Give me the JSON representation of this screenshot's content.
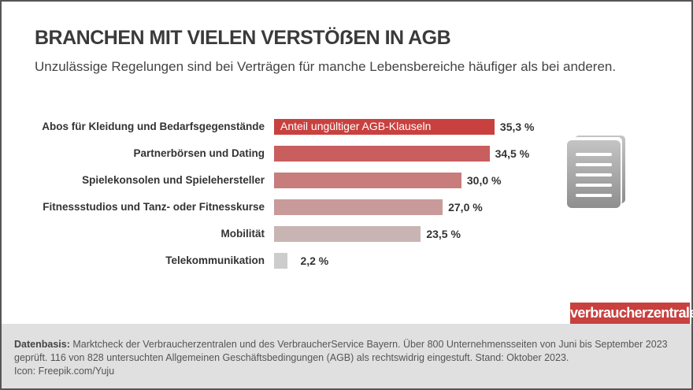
{
  "title": "BRANCHEN MIT VIELEN VERSTÖẞEN IN AGB",
  "subtitle": "Unzulässige Regelungen sind bei Verträgen für manche Lebensbereiche häufiger als bei anderen.",
  "chart_data": {
    "type": "bar",
    "orientation": "horizontal",
    "categories": [
      "Abos für Kleidung und Bedarfsgegenstände",
      "Partnerbörsen und Dating",
      "Spielekonsolen und Spielehersteller",
      "Fitnessstudios und Tanz- oder Fitnesskurse",
      "Mobilität",
      "Telekommunikation"
    ],
    "series": [
      {
        "name": "Anteil ungültiger AGB-Klauseln",
        "values": [
          35.3,
          34.5,
          30.0,
          27.0,
          23.5,
          2.2
        ]
      }
    ],
    "value_labels": [
      "35,3 %",
      "34,5 %",
      "30,0 %",
      "27,0 %",
      "23,5 %",
      "2,2 %"
    ],
    "unit": "%",
    "colors": [
      "#c8413f",
      "#c85e5e",
      "#c87c7c",
      "#c99a9a",
      "#c9b4b4",
      "#cccccc"
    ],
    "legend_placement": "inside first bar",
    "grid": false
  },
  "icon": "document-stack-icon",
  "logo": "verbraucherzentrale",
  "footer": {
    "label": "Datenbasis:",
    "text": " Marktcheck der Verbraucherzentralen und des VerbraucherService Bayern. Über 800 Unternehmensseiten von Juni bis September 2023 geprüft. 116 von 828 untersuchten Allgemeinen Geschäftsbedingungen (AGB) als rechtswidrig eingestuft. Stand: Oktober 2023.",
    "credit": "Icon: Freepik.com/Yuju"
  }
}
